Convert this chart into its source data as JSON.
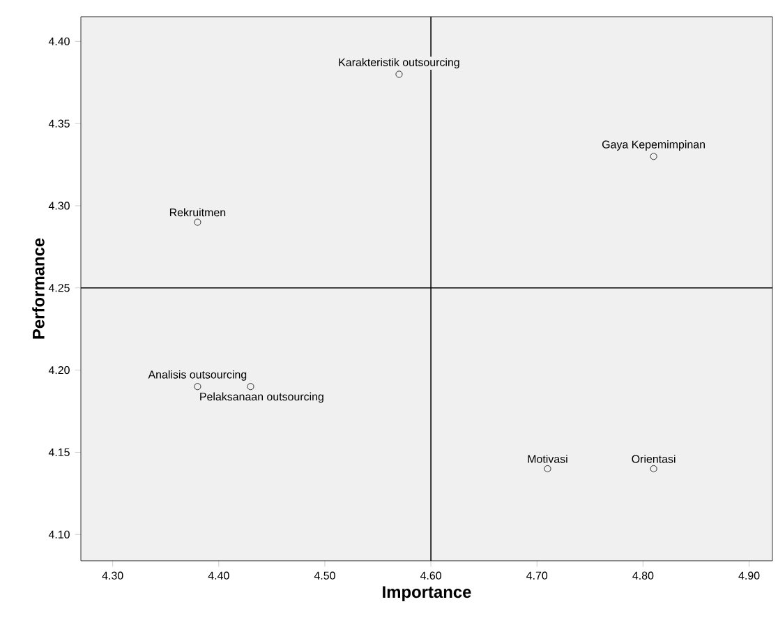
{
  "chart_data": {
    "type": "scatter",
    "xlabel": "Importance",
    "ylabel": "Performance",
    "x": [
      4.57,
      4.81,
      4.38,
      4.38,
      4.43,
      4.71,
      4.81
    ],
    "series": [
      {
        "color": "#000000",
        "values": [
          4.38,
          4.33,
          4.29,
          4.19,
          4.19,
          4.14,
          4.14
        ]
      }
    ],
    "marker": "circle",
    "xlim": [
      4.27,
      4.922
    ],
    "ylim": [
      4.084,
      4.415
    ],
    "xticks": [
      {
        "value": 4.3,
        "label": "4.30"
      },
      {
        "value": 4.4,
        "label": "4.40"
      },
      {
        "value": 4.5,
        "label": "4.50"
      },
      {
        "value": 4.6,
        "label": "4.60"
      },
      {
        "value": 4.7,
        "label": "4.70"
      },
      {
        "value": 4.8,
        "label": "4.80"
      },
      {
        "value": 4.9,
        "label": "4.90"
      }
    ],
    "yticks": [
      {
        "value": 4.1,
        "label": "4.10"
      },
      4.15,
      {
        "value": 4.2,
        "label": "4.20"
      },
      4.25,
      {
        "value": 4.3,
        "label": "4.30"
      },
      4.35,
      {
        "value": 4.4,
        "label": "4.40"
      }
    ],
    "ref_lines": [
      {
        "axis": "x",
        "value": 4.6,
        "color": "#000000"
      },
      {
        "axis": "y",
        "value": 4.25,
        "color": "#000000"
      }
    ],
    "annotations": [
      {
        "text": "Karakteristik outsourcing",
        "x": 4.57,
        "y": 4.38
      },
      {
        "text": "Gaya Kepemimpinan",
        "x": 4.81,
        "y": 4.33
      },
      {
        "text": "Rekruitmen",
        "x": 4.38,
        "y": 4.29
      },
      {
        "text": "Analisis outsourcing",
        "x": 4.38,
        "y": 4.19
      },
      {
        "text": "Pelaksanaan outsourcing",
        "x": 4.43,
        "y": 4.19
      },
      {
        "text": "Motivasi",
        "x": 4.71,
        "y": 4.14
      },
      {
        "text": "Orientasi",
        "x": 4.81,
        "y": 4.14
      }
    ]
  }
}
